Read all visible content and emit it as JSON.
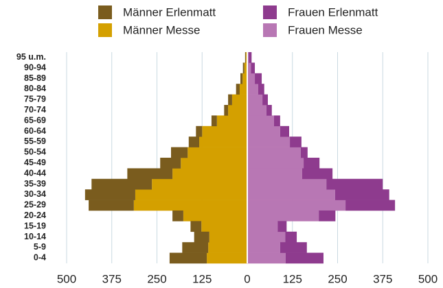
{
  "chart_data": {
    "type": "pyramid",
    "categories": [
      "0-4",
      "5-9",
      "10-14",
      "15-19",
      "20-24",
      "25-29",
      "30-34",
      "35-39",
      "40-44",
      "45-49",
      "50-54",
      "55-59",
      "60-64",
      "65-69",
      "70-74",
      "75-79",
      "80-84",
      "85-89",
      "90-94",
      "95 u.m."
    ],
    "series": [
      {
        "name": "Männer Erlenmatt",
        "color": "#7a5c1e",
        "side": "left",
        "values": [
          103,
          72,
          42,
          30,
          30,
          125,
          139,
          167,
          125,
          57,
          46,
          29,
          17,
          15,
          11,
          11,
          10,
          6,
          4,
          2
        ]
      },
      {
        "name": "Frauen Erlenmatt",
        "color": "#8e3b8e",
        "side": "right",
        "values": [
          105,
          74,
          32,
          25,
          46,
          137,
          150,
          156,
          84,
          44,
          19,
          32,
          25,
          17,
          15,
          15,
          17,
          19,
          11,
          8
        ]
      },
      {
        "name": "Männer Messe",
        "color": "#d4a000",
        "side": "left",
        "values": [
          112,
          108,
          105,
          127,
          177,
          314,
          310,
          264,
          207,
          184,
          165,
          133,
          125,
          84,
          53,
          42,
          21,
          13,
          8,
          4
        ]
      },
      {
        "name": "Frauen Messe",
        "color": "#b877b4",
        "side": "right",
        "values": [
          106,
          91,
          105,
          84,
          198,
          272,
          243,
          219,
          152,
          156,
          148,
          118,
          91,
          74,
          53,
          42,
          30,
          21,
          10,
          4
        ]
      }
    ],
    "xlim": [
      -500,
      500
    ],
    "xticks": [
      {
        "value": -500,
        "label": "500"
      },
      {
        "value": -375,
        "label": "375"
      },
      {
        "value": -250,
        "label": "250"
      },
      {
        "value": -125,
        "label": "125"
      },
      0,
      125,
      250,
      375,
      500
    ],
    "grid": true
  }
}
